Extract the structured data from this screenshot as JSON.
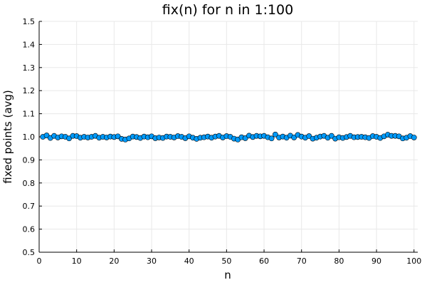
{
  "chart_data": {
    "type": "scatter",
    "title": "fix(n) for n in 1:100",
    "xlabel": "n",
    "ylabel": "fixed points (avg)",
    "xlim": [
      0,
      101
    ],
    "ylim": [
      0.5,
      1.5
    ],
    "xticks": [
      0,
      10,
      20,
      30,
      40,
      50,
      60,
      70,
      80,
      90,
      100
    ],
    "yticks": [
      0.5,
      0.6,
      0.7,
      0.8,
      0.9,
      1.0,
      1.1,
      1.2,
      1.3,
      1.4,
      1.5
    ],
    "ytick_labels": [
      "0.5",
      "0.6",
      "0.7",
      "0.8",
      "0.9",
      "1.0",
      "1.1",
      "1.2",
      "1.3",
      "1.4",
      "1.5"
    ],
    "grid": true,
    "legend": "none",
    "marker_color": "#009AFA",
    "series": [
      {
        "x": [
          1,
          2,
          3,
          4,
          5,
          6,
          7,
          8,
          9,
          10,
          11,
          12,
          13,
          14,
          15,
          16,
          17,
          18,
          19,
          20,
          21,
          22,
          23,
          24,
          25,
          26,
          27,
          28,
          29,
          30,
          31,
          32,
          33,
          34,
          35,
          36,
          37,
          38,
          39,
          40,
          41,
          42,
          43,
          44,
          45,
          46,
          47,
          48,
          49,
          50,
          51,
          52,
          53,
          54,
          55,
          56,
          57,
          58,
          59,
          60,
          61,
          62,
          63,
          64,
          65,
          66,
          67,
          68,
          69,
          70,
          71,
          72,
          73,
          74,
          75,
          76,
          77,
          78,
          79,
          80,
          81,
          82,
          83,
          84,
          85,
          86,
          87,
          88,
          89,
          90,
          91,
          92,
          93,
          94,
          95,
          96,
          97,
          98,
          99,
          100
        ],
        "values": [
          1.0,
          1.006,
          0.995,
          1.004,
          0.997,
          1.002,
          1.0,
          0.993,
          1.004,
          1.003,
          0.996,
          1.0,
          0.997,
          1.0,
          1.004,
          0.996,
          1.0,
          0.997,
          1.001,
          0.999,
          1.002,
          0.991,
          0.988,
          0.993,
          1.001,
          0.999,
          0.995,
          1.001,
          0.998,
          1.002,
          0.994,
          0.997,
          0.995,
          1.001,
          1.0,
          0.997,
          1.003,
          1.0,
          0.994,
          1.002,
          0.996,
          0.991,
          0.996,
          0.998,
          1.001,
          0.996,
          1.001,
          1.004,
          0.997,
          1.003,
          1.0,
          0.992,
          0.988,
          0.998,
          0.994,
          1.005,
          0.999,
          1.004,
          1.002,
          1.004,
          0.998,
          0.993,
          1.01,
          0.997,
          1.001,
          0.996,
          1.005,
          0.997,
          1.008,
          1.001,
          0.996,
          1.003,
          0.992,
          0.996,
          1.001,
          1.004,
          0.996,
          1.004,
          0.992,
          0.998,
          0.995,
          0.999,
          1.004,
          0.998,
          0.999,
          1.0,
          0.998,
          0.995,
          1.003,
          1.0,
          0.995,
          1.002,
          1.009,
          1.004,
          1.004,
          1.002,
          0.993,
          0.996,
          1.003,
          0.997
        ]
      }
    ]
  }
}
